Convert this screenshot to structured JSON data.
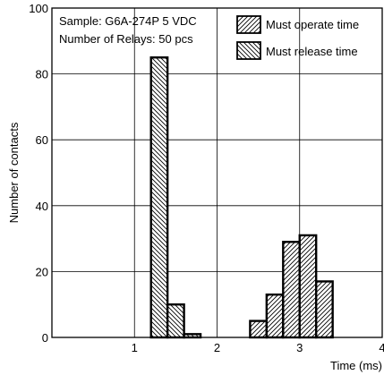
{
  "chart_data": {
    "type": "bar",
    "xlabel": "Time (ms)",
    "ylabel": "Number of contacts",
    "xlim": [
      0,
      4
    ],
    "ylim": [
      0,
      100
    ],
    "xticks": [
      1,
      2,
      3,
      4
    ],
    "yticks": [
      0,
      20,
      40,
      60,
      80,
      100
    ],
    "x_tick_labels": [
      "1",
      "2",
      "3",
      "4"
    ],
    "y_tick_labels": [
      "0",
      "20",
      "40",
      "60",
      "80",
      "100"
    ],
    "grid": true,
    "bin_width": 0.2,
    "annotations": [
      "Sample: G6A-274P 5 VDC",
      "Number of Relays: 50 pcs"
    ],
    "legend_position": "top-right",
    "series": [
      {
        "name": "Must operate time",
        "pattern": "hatch-forward",
        "bins": [
          {
            "start": 2.4,
            "value": 5
          },
          {
            "start": 2.6,
            "value": 13
          },
          {
            "start": 2.8,
            "value": 29
          },
          {
            "start": 3.0,
            "value": 31
          },
          {
            "start": 3.2,
            "value": 17
          }
        ]
      },
      {
        "name": "Must release time",
        "pattern": "hatch-backward",
        "bins": [
          {
            "start": 1.2,
            "value": 85
          },
          {
            "start": 1.4,
            "value": 10
          },
          {
            "start": 1.6,
            "value": 1
          }
        ]
      }
    ]
  }
}
